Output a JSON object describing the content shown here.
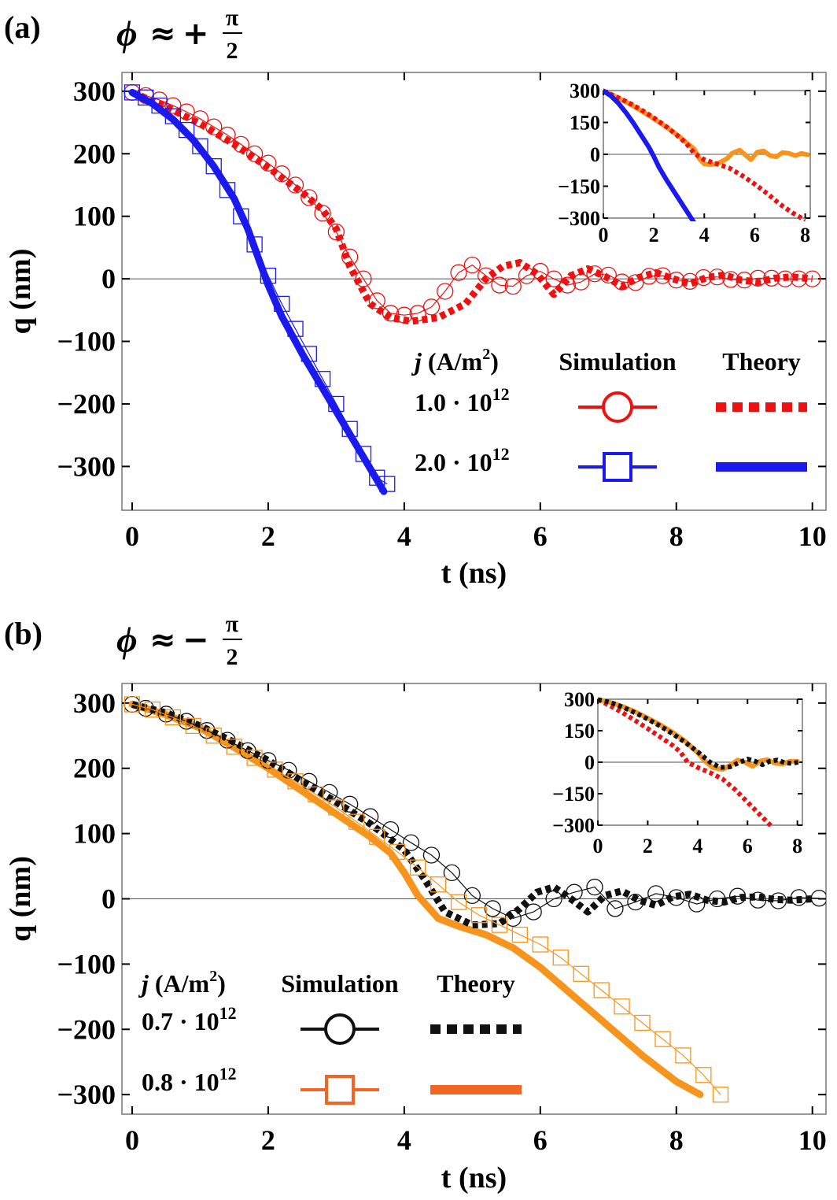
{
  "chart_data": [
    {
      "type": "line",
      "panel_label": "(a)",
      "title": {
        "phi": "ϕ",
        "approx": "≈",
        "sign": "+",
        "numerator": "π",
        "denominator": "2"
      },
      "xlabel": "t (ns)",
      "ylabel": "q (nm)",
      "xlim": [
        -0.15,
        10.2
      ],
      "ylim": [
        -370,
        330
      ],
      "xticks": [
        "0",
        "2",
        "4",
        "6",
        "8",
        "10"
      ],
      "yticks": [
        "300",
        "200",
        "100",
        "0",
        "−100",
        "−200",
        "−300"
      ],
      "legend": {
        "header_j": "j",
        "header_unit": " (A/m",
        "header_sup": "2",
        "header_close": ")",
        "header_sim": "Simulation",
        "header_theory": "Theory",
        "rows": [
          {
            "mantissa": "1.0 · 10",
            "exponent": "12"
          },
          {
            "mantissa": "2.0 · 10",
            "exponent": "12"
          }
        ]
      },
      "series": [
        {
          "name": "1.0 · 10^12 Theory",
          "style": "dotted-thick",
          "color": "#ee1111",
          "x": [
            0,
            0.5,
            1,
            1.5,
            2,
            2.5,
            2.8,
            3.0,
            3.2,
            3.5,
            3.8,
            4.1,
            4.5,
            4.9,
            5.2,
            5.45,
            5.7,
            5.95,
            6.2,
            6.45,
            6.7,
            6.95,
            7.2,
            7.45,
            7.7,
            7.95,
            8.2,
            8.45,
            8.7,
            8.95,
            9.2,
            9.45,
            9.7,
            10.0
          ],
          "y": [
            298,
            275,
            248,
            215,
            178,
            138,
            110,
            80,
            20,
            -40,
            -62,
            -68,
            -62,
            -40,
            0,
            20,
            26,
            8,
            -25,
            5,
            16,
            4,
            -12,
            2,
            10,
            0,
            -8,
            2,
            6,
            -2,
            -5,
            1,
            3,
            0
          ]
        },
        {
          "name": "1.0 · 10^12 Simulation",
          "style": "circle",
          "color": "#ee1111",
          "x": [
            0,
            0.2,
            0.4,
            0.6,
            0.8,
            1.0,
            1.2,
            1.4,
            1.6,
            1.8,
            2.0,
            2.2,
            2.4,
            2.6,
            2.8,
            3.0,
            3.2,
            3.4,
            3.6,
            3.8,
            4.0,
            4.2,
            4.4,
            4.6,
            4.8,
            5.0,
            5.2,
            5.4,
            5.6,
            5.8,
            6.0,
            6.2,
            6.4,
            6.6,
            6.8,
            7.0,
            7.2,
            7.4,
            7.6,
            7.8,
            8.0,
            8.2,
            8.4,
            8.6,
            8.8,
            9.0,
            9.2,
            9.4,
            9.6,
            9.8,
            10.0
          ],
          "y": [
            298,
            293,
            286,
            277,
            267,
            256,
            243,
            230,
            215,
            200,
            185,
            168,
            150,
            130,
            105,
            75,
            35,
            0,
            -35,
            -55,
            -58,
            -55,
            -45,
            -20,
            10,
            22,
            5,
            -10,
            -12,
            5,
            12,
            0,
            -10,
            -5,
            8,
            6,
            -5,
            -6,
            4,
            5,
            -2,
            -4,
            2,
            3,
            -1,
            -2,
            1,
            1,
            0,
            0,
            0
          ]
        },
        {
          "name": "2.0 · 10^12 Theory",
          "style": "solid-thick",
          "color": "#1a1aee",
          "x": [
            0,
            0.3,
            0.6,
            0.9,
            1.2,
            1.5,
            1.7,
            1.85,
            2.0,
            2.2,
            2.5,
            2.8,
            3.1,
            3.4,
            3.7
          ],
          "y": [
            298,
            280,
            255,
            222,
            180,
            128,
            80,
            35,
            -10,
            -60,
            -120,
            -175,
            -230,
            -285,
            -340
          ]
        },
        {
          "name": "2.0 · 10^12 Simulation",
          "style": "square",
          "color": "#1a1aee",
          "x": [
            0,
            0.2,
            0.4,
            0.6,
            0.8,
            1.0,
            1.2,
            1.4,
            1.6,
            1.8,
            2.0,
            2.2,
            2.4,
            2.6,
            2.8,
            3.0,
            3.2,
            3.4,
            3.6,
            3.75
          ],
          "y": [
            298,
            290,
            277,
            260,
            238,
            212,
            180,
            142,
            100,
            55,
            5,
            -40,
            -80,
            -120,
            -160,
            -200,
            -240,
            -280,
            -318,
            -328
          ]
        }
      ]
    },
    {
      "type": "line",
      "panel_label": "(a) inset",
      "xlim": [
        0,
        8.2
      ],
      "ylim": [
        -300,
        300
      ],
      "xticks": [
        "0",
        "2",
        "4",
        "6",
        "8"
      ],
      "yticks": [
        "300",
        "150",
        "0",
        "−150",
        "−300"
      ],
      "series": [
        {
          "name": "orange solid",
          "style": "solid-thick",
          "color": "#f7941d",
          "x": [
            0,
            0.5,
            1,
            1.5,
            2,
            2.5,
            3,
            3.3,
            3.6,
            3.8,
            4.0,
            4.3,
            4.6,
            4.9,
            5.1,
            5.4,
            5.6,
            5.85,
            6.1,
            6.35,
            6.6,
            6.85,
            7.1,
            7.35,
            7.6,
            7.85,
            8.1
          ],
          "y": [
            298,
            270,
            240,
            205,
            168,
            128,
            85,
            55,
            25,
            -20,
            -45,
            -48,
            -40,
            -20,
            5,
            20,
            0,
            -25,
            10,
            16,
            -5,
            -12,
            8,
            5,
            -6,
            4,
            -2
          ]
        },
        {
          "name": "red dotted",
          "style": "dotted-thick",
          "color": "#ee1111",
          "x": [
            0,
            0.5,
            1,
            1.5,
            2,
            2.5,
            3,
            3.3,
            3.6,
            4.0,
            4.5,
            5.0,
            5.5,
            6.0,
            6.5,
            7.0,
            7.5,
            8.0
          ],
          "y": [
            298,
            272,
            243,
            210,
            172,
            130,
            82,
            50,
            5,
            -25,
            -45,
            -65,
            -100,
            -140,
            -185,
            -235,
            -275,
            -310
          ]
        },
        {
          "name": "blue solid",
          "style": "solid-thick",
          "color": "#1a1aee",
          "x": [
            0,
            0.3,
            0.6,
            0.9,
            1.2,
            1.5,
            1.8,
            2.0,
            2.2,
            2.5,
            2.8,
            3.1,
            3.4,
            3.7
          ],
          "y": [
            298,
            275,
            240,
            195,
            145,
            90,
            35,
            -10,
            -60,
            -120,
            -175,
            -230,
            -285,
            -340
          ]
        }
      ]
    },
    {
      "type": "line",
      "panel_label": "(b)",
      "title": {
        "phi": "ϕ",
        "approx": "≈",
        "sign": "−",
        "numerator": "π",
        "denominator": "2"
      },
      "xlabel": "t (ns)",
      "ylabel": "q (nm)",
      "xlim": [
        -0.15,
        10.2
      ],
      "ylim": [
        -330,
        330
      ],
      "xticks": [
        "0",
        "2",
        "4",
        "6",
        "8",
        "10"
      ],
      "yticks": [
        "300",
        "200",
        "100",
        "0",
        "−100",
        "−200",
        "−300"
      ],
      "legend": {
        "header_j": "j",
        "header_unit": " (A/m",
        "header_sup": "2",
        "header_close": ")",
        "header_sim": "Simulation",
        "header_theory": "Theory",
        "rows": [
          {
            "mantissa": "0.7 · 10",
            "exponent": "12"
          },
          {
            "mantissa": "0.8 · 10",
            "exponent": "12"
          }
        ]
      },
      "series": [
        {
          "name": "0.8 · 10^12 Theory",
          "style": "solid-thick",
          "color": "#f7941d",
          "x": [
            0,
            0.5,
            1,
            1.5,
            2,
            2.5,
            3,
            3.5,
            3.8,
            4.0,
            4.2,
            4.5,
            4.8,
            5.2,
            5.6,
            6.0,
            6.5,
            7.0,
            7.5,
            8.0,
            8.35
          ],
          "y": [
            298,
            282,
            262,
            232,
            200,
            165,
            130,
            95,
            70,
            40,
            5,
            -30,
            -42,
            -55,
            -75,
            -105,
            -150,
            -195,
            -240,
            -280,
            -300
          ]
        },
        {
          "name": "0.7 · 10^12 Theory",
          "style": "dotted-thick",
          "color": "#111111",
          "x": [
            0,
            0.5,
            1,
            1.5,
            2,
            2.5,
            3,
            3.5,
            4.0,
            4.3,
            4.6,
            5.0,
            5.4,
            5.7,
            5.95,
            6.2,
            6.45,
            6.7,
            6.95,
            7.2,
            7.45,
            7.7,
            7.95,
            8.2,
            8.45,
            8.7,
            8.95,
            9.2,
            9.45,
            9.7,
            10.0
          ],
          "y": [
            298,
            285,
            265,
            240,
            212,
            180,
            148,
            115,
            75,
            30,
            -20,
            -40,
            -38,
            -15,
            10,
            18,
            0,
            -20,
            5,
            12,
            -2,
            -10,
            3,
            7,
            -2,
            -5,
            2,
            3,
            -1,
            -2,
            0
          ]
        },
        {
          "name": "0.7 · 10^12 Simulation",
          "style": "circle",
          "color": "#111111",
          "x": [
            0,
            0.2,
            0.5,
            0.8,
            1.1,
            1.4,
            1.7,
            2.0,
            2.3,
            2.6,
            2.9,
            3.2,
            3.5,
            3.8,
            4.1,
            4.4,
            4.7,
            5.0,
            5.3,
            5.6,
            5.9,
            6.2,
            6.5,
            6.8,
            7.1,
            7.4,
            7.7,
            8.0,
            8.3,
            8.6,
            8.9,
            9.2,
            9.5,
            9.8,
            10.1
          ],
          "y": [
            298,
            292,
            283,
            272,
            258,
            243,
            227,
            212,
            197,
            180,
            163,
            145,
            126,
            106,
            86,
            67,
            40,
            5,
            -15,
            -30,
            -20,
            0,
            10,
            18,
            -15,
            -5,
            8,
            2,
            -8,
            0,
            4,
            -2,
            -3,
            2,
            1
          ]
        },
        {
          "name": "0.8 · 10^12 Simulation",
          "style": "square",
          "color": "#f7941d",
          "x": [
            0,
            0.3,
            0.6,
            0.9,
            1.2,
            1.5,
            1.8,
            2.1,
            2.4,
            2.7,
            3.0,
            3.3,
            3.6,
            3.9,
            4.2,
            4.5,
            4.8,
            5.1,
            5.4,
            5.7,
            6.0,
            6.3,
            6.6,
            6.9,
            7.2,
            7.5,
            7.8,
            8.1,
            8.4,
            8.65
          ],
          "y": [
            298,
            290,
            278,
            265,
            250,
            233,
            216,
            198,
            180,
            160,
            140,
            118,
            95,
            72,
            48,
            22,
            -5,
            -25,
            -40,
            -55,
            -70,
            -90,
            -115,
            -140,
            -165,
            -190,
            -215,
            -240,
            -270,
            -300
          ]
        }
      ]
    },
    {
      "type": "line",
      "panel_label": "(b) inset",
      "xlim": [
        0,
        8.2
      ],
      "ylim": [
        -300,
        300
      ],
      "xticks": [
        "0",
        "2",
        "4",
        "6",
        "8"
      ],
      "yticks": [
        "300",
        "150",
        "0",
        "−150",
        "−300"
      ],
      "series": [
        {
          "name": "red dotted",
          "style": "dotted-thick",
          "color": "#ee1111",
          "x": [
            0,
            0.5,
            1,
            1.5,
            2,
            2.5,
            3,
            3.3,
            3.6,
            4.0,
            4.5,
            5.0,
            5.5,
            6.0,
            6.5,
            7.0
          ],
          "y": [
            298,
            268,
            235,
            198,
            160,
            120,
            80,
            50,
            0,
            -25,
            -50,
            -80,
            -130,
            -190,
            -250,
            -310
          ]
        },
        {
          "name": "orange solid",
          "style": "solid-thick",
          "color": "#f7941d",
          "x": [
            0,
            0.5,
            1,
            1.5,
            2,
            2.5,
            3,
            3.5,
            4.0,
            4.3,
            4.6,
            5.0,
            5.3,
            5.6,
            5.9,
            6.2,
            6.5,
            6.8,
            7.1,
            7.4,
            7.7,
            8.0
          ],
          "y": [
            298,
            285,
            265,
            240,
            210,
            178,
            142,
            100,
            45,
            5,
            -25,
            -35,
            -15,
            10,
            0,
            -20,
            5,
            12,
            -5,
            -8,
            4,
            5
          ]
        },
        {
          "name": "black dotted",
          "style": "dotted-thick",
          "color": "#111111",
          "x": [
            0,
            0.5,
            1,
            1.5,
            2,
            2.5,
            3,
            3.5,
            4.0,
            4.5,
            4.9,
            5.3,
            5.7,
            6.0,
            6.3,
            6.6,
            6.9,
            7.2,
            7.5,
            7.8,
            8.1
          ],
          "y": [
            298,
            285,
            262,
            235,
            205,
            172,
            135,
            95,
            50,
            0,
            -25,
            -22,
            0,
            15,
            5,
            -12,
            5,
            10,
            -3,
            -6,
            2
          ]
        }
      ]
    }
  ]
}
